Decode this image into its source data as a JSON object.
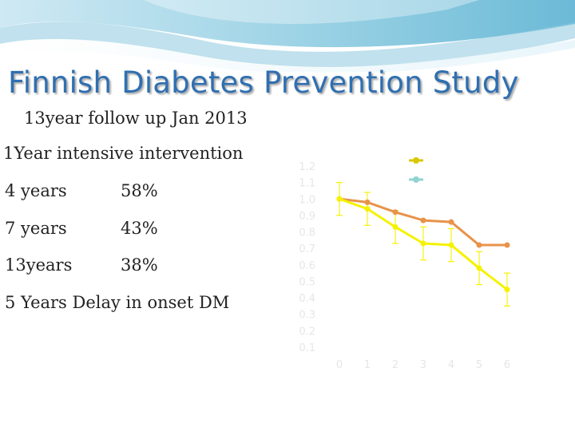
{
  "slide": {
    "title": "Finnish Diabetes Prevention Study",
    "subtitle": "13year follow up Jan 2013",
    "lines": [
      {
        "label": "1Year intensive intervention",
        "value": ""
      },
      {
        "label": "4  years",
        "value": "58%"
      },
      {
        "label": "7   years",
        "value": "43%"
      },
      {
        "label": "13years",
        "value": "38%"
      },
      {
        "label": "5 Years Delay in onset DM",
        "value": ""
      }
    ]
  },
  "colors": {
    "title": "#2f6fb1",
    "intervention": "#f5f200",
    "control": "#e8934a",
    "legend_intervention": "#d8c800",
    "legend_control": "#8fd4d0"
  },
  "chart_data": {
    "type": "line",
    "title": "",
    "ylabel": "",
    "xlabel": "",
    "x": [
      0,
      1,
      2,
      3,
      4,
      5,
      6
    ],
    "xticks": [
      "0",
      "1",
      "2",
      "3",
      "4",
      "5",
      "6"
    ],
    "yticks": [
      "0.1",
      "0.2",
      "0.3",
      "0.4",
      "0.5",
      "0.6",
      "0.7",
      "0.8",
      "0.9",
      "1.0",
      "1.1",
      "1.2"
    ],
    "ylim": [
      0.1,
      1.2
    ],
    "series": [
      {
        "name": "",
        "color": "#e8934a",
        "values": [
          1.0,
          0.98,
          0.92,
          0.87,
          0.86,
          0.72,
          0.72
        ]
      },
      {
        "name": "",
        "color": "#f5f200",
        "values": [
          1.0,
          0.94,
          0.83,
          0.73,
          0.72,
          0.58,
          0.45
        ]
      }
    ],
    "error_bars": [
      0.1,
      0.1,
      0.1,
      0.1,
      0.1,
      0.1,
      0.1
    ],
    "grid": false,
    "legend_position": "top-right"
  }
}
